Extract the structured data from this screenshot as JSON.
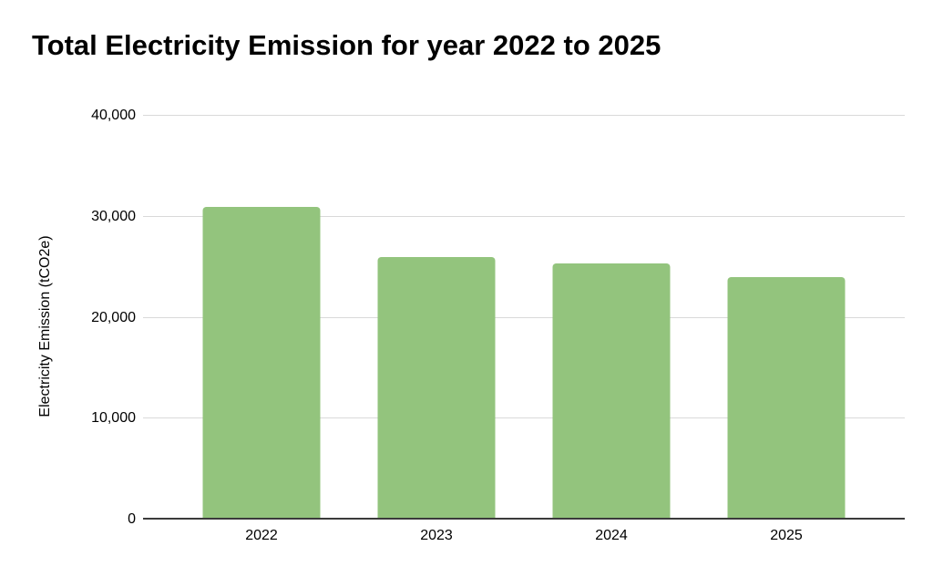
{
  "chart_data": {
    "type": "bar",
    "title": "Total Electricity Emission for year 2022 to 2025",
    "xlabel": "",
    "ylabel": "Electricity Emission (tCO2e)",
    "categories": [
      "2022",
      "2023",
      "2024",
      "2025"
    ],
    "values": [
      31000,
      26000,
      25400,
      24000
    ],
    "ylim": [
      0,
      40000
    ],
    "yticks": [
      {
        "value": 0,
        "label": "0"
      },
      {
        "value": 10000,
        "label": "10,000"
      },
      {
        "value": 20000,
        "label": "20,000"
      },
      {
        "value": 30000,
        "label": "30,000"
      },
      {
        "value": 40000,
        "label": "40,000"
      }
    ],
    "grid": "horizontal",
    "legend": "none",
    "colors": {
      "bar": "#93c47d",
      "gridline": "#d9d9d9",
      "axis_line": "#3b3b3b",
      "text": "#000000",
      "background": "#ffffff"
    }
  }
}
